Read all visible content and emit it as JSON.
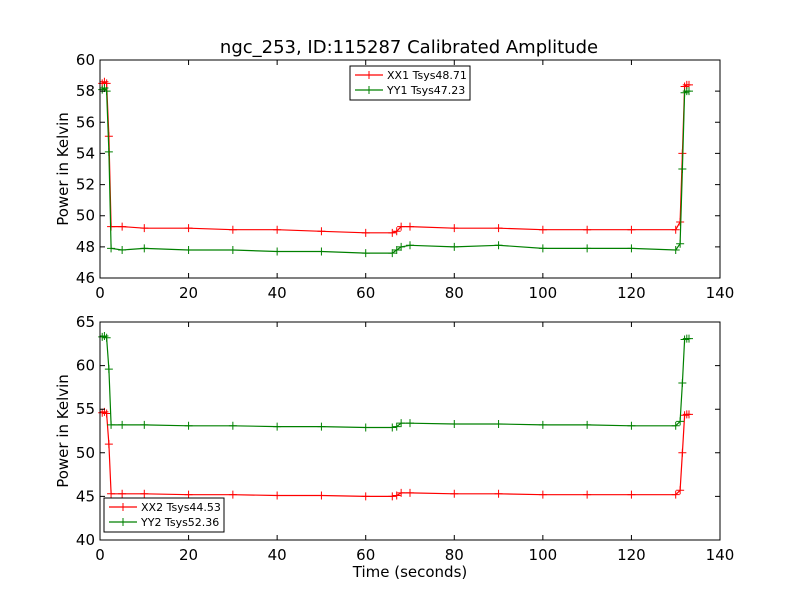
{
  "title": "ngc_253, ID:115287 Calibrated Amplitude",
  "chart_data": [
    {
      "type": "line",
      "title": "ngc_253, ID:115287 Calibrated Amplitude",
      "xlabel": "",
      "ylabel": "Power in Kelvin",
      "xlim": [
        0,
        140
      ],
      "ylim": [
        46,
        60
      ],
      "xticks": [
        "0",
        "20",
        "40",
        "60",
        "80",
        "100",
        "120",
        "140"
      ],
      "yticks": [
        "46",
        "48",
        "50",
        "52",
        "54",
        "56",
        "58",
        "60"
      ],
      "grid": false,
      "legend_position": "top-center",
      "series": [
        {
          "name": "XX1 Tsys48.71",
          "color": "#ff0000",
          "x": [
            0.5,
            1,
            1.5,
            2,
            2.5,
            5,
            10,
            20,
            30,
            40,
            50,
            60,
            66,
            67,
            68,
            70,
            80,
            90,
            100,
            110,
            120,
            130,
            131,
            131.5,
            132,
            132.5,
            133
          ],
          "y": [
            58.5,
            58.6,
            58.5,
            55.1,
            49.3,
            49.3,
            49.2,
            49.2,
            49.1,
            49.1,
            49.0,
            48.9,
            48.9,
            49.0,
            49.3,
            49.3,
            49.2,
            49.2,
            49.1,
            49.1,
            49.1,
            49.1,
            49.6,
            54.0,
            58.3,
            58.4,
            58.4
          ]
        },
        {
          "name": "YY1 Tsys47.23",
          "color": "#008000",
          "x": [
            0.5,
            1,
            1.5,
            2,
            2.5,
            5,
            10,
            20,
            30,
            40,
            50,
            60,
            66,
            67,
            68,
            70,
            80,
            90,
            100,
            110,
            120,
            130,
            131,
            131.5,
            132,
            132.5,
            133
          ],
          "y": [
            58.1,
            58.2,
            58.0,
            54.1,
            47.9,
            47.8,
            47.9,
            47.8,
            47.8,
            47.7,
            47.7,
            47.6,
            47.6,
            47.8,
            48.0,
            48.1,
            48.0,
            48.1,
            47.9,
            47.9,
            47.9,
            47.8,
            48.2,
            53.0,
            57.9,
            58.0,
            58.0
          ]
        }
      ]
    },
    {
      "type": "line",
      "title": "",
      "xlabel": "Time (seconds)",
      "ylabel": "Power in Kelvin",
      "xlim": [
        0,
        140
      ],
      "ylim": [
        40,
        65
      ],
      "xticks": [
        "0",
        "20",
        "40",
        "60",
        "80",
        "100",
        "120",
        "140"
      ],
      "yticks": [
        "40",
        "45",
        "50",
        "55",
        "60",
        "65"
      ],
      "grid": false,
      "legend_position": "bottom-left",
      "series": [
        {
          "name": "XX2 Tsys44.53",
          "color": "#ff0000",
          "x": [
            0.5,
            1,
            1.5,
            2,
            2.5,
            5,
            10,
            20,
            30,
            40,
            50,
            60,
            66,
            67,
            68,
            70,
            80,
            90,
            100,
            110,
            120,
            130,
            131,
            131.5,
            132,
            132.5,
            133
          ],
          "y": [
            54.6,
            54.7,
            54.5,
            51.0,
            45.3,
            45.3,
            45.3,
            45.2,
            45.2,
            45.1,
            45.1,
            45.0,
            45.0,
            45.1,
            45.4,
            45.4,
            45.3,
            45.3,
            45.2,
            45.2,
            45.2,
            45.2,
            45.7,
            50.0,
            54.3,
            54.4,
            54.4
          ]
        },
        {
          "name": "YY2 Tsys52.36",
          "color": "#008000",
          "x": [
            0.5,
            1,
            1.5,
            2,
            2.5,
            5,
            10,
            20,
            30,
            40,
            50,
            60,
            66,
            67,
            68,
            70,
            80,
            90,
            100,
            110,
            120,
            130,
            131,
            131.5,
            132,
            132.5,
            133
          ],
          "y": [
            63.3,
            63.4,
            63.2,
            59.6,
            53.2,
            53.2,
            53.2,
            53.1,
            53.1,
            53.0,
            53.0,
            52.9,
            52.9,
            53.0,
            53.4,
            53.4,
            53.3,
            53.3,
            53.2,
            53.2,
            53.1,
            53.1,
            53.6,
            58.0,
            63.0,
            63.1,
            63.1
          ]
        }
      ]
    }
  ]
}
